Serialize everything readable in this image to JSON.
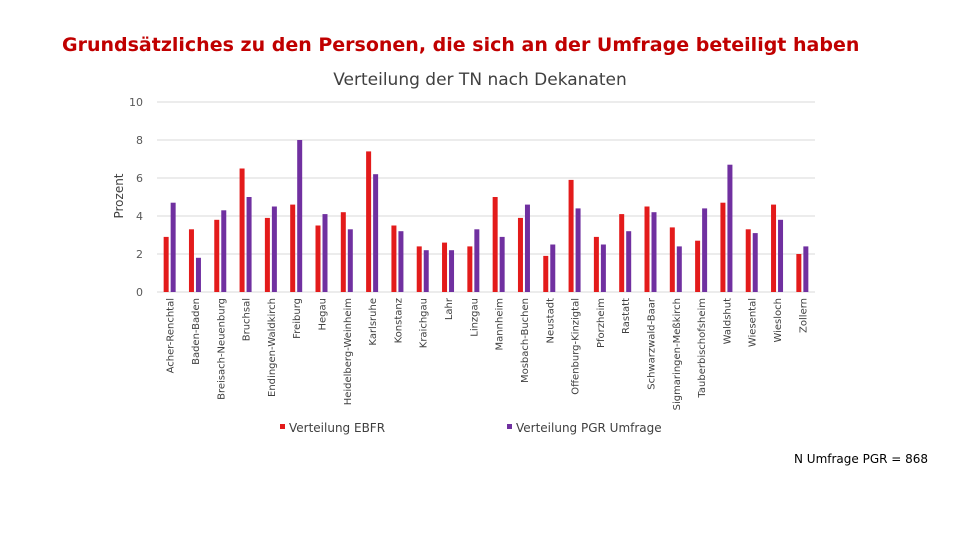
{
  "slide": {
    "heading": "Grundsätzliches zu den Personen, die sich an der Umfrage beteiligt haben",
    "footnote": "N Umfrage PGR = 868"
  },
  "colors": {
    "series1": "#e31b1b",
    "series2": "#7030a0",
    "grid": "#d9d9d9"
  },
  "chart_data": {
    "type": "bar",
    "title": "Verteilung der TN nach Dekanaten",
    "xlabel": "",
    "ylabel": "Prozent",
    "ylim": [
      0,
      10
    ],
    "yticks": [
      0,
      2,
      4,
      6,
      8,
      10
    ],
    "grid": true,
    "legend": "bottom",
    "categories": [
      "Acher-Renchtal",
      "Baden-Baden",
      "Breisach-Neuenburg",
      "Bruchsal",
      "Endingen-Waldkirch",
      "Freiburg",
      "Hegau",
      "Heidelberg-Weinheim",
      "Karlsruhe",
      "Konstanz",
      "Kraichgau",
      "Lahr",
      "Linzgau",
      "Mannheim",
      "Mosbach-Buchen",
      "Neustadt",
      "Offenburg-Kinzigtal",
      "Pforzheim",
      "Rastatt",
      "Schwarzwald-Baar",
      "Sigmaringen-Meßkirch",
      "Tauberbischofsheim",
      "Waldshut",
      "Wiesental",
      "Wiesloch",
      "Zollern"
    ],
    "series": [
      {
        "name": "Verteilung EBFR",
        "values": [
          2.9,
          3.3,
          3.8,
          6.5,
          3.9,
          4.6,
          3.5,
          4.2,
          7.4,
          3.5,
          2.4,
          2.6,
          2.4,
          5.0,
          3.9,
          1.9,
          5.9,
          2.9,
          4.1,
          4.5,
          3.4,
          2.7,
          4.7,
          3.3,
          4.6,
          2.0
        ]
      },
      {
        "name": "Verteilung PGR Umfrage",
        "values": [
          4.7,
          1.8,
          4.3,
          5.0,
          4.5,
          8.0,
          4.1,
          3.3,
          6.2,
          3.2,
          2.2,
          2.2,
          3.3,
          2.9,
          4.6,
          2.5,
          4.4,
          2.5,
          3.2,
          4.2,
          2.4,
          4.4,
          6.7,
          3.1,
          3.8,
          2.4
        ]
      }
    ]
  }
}
